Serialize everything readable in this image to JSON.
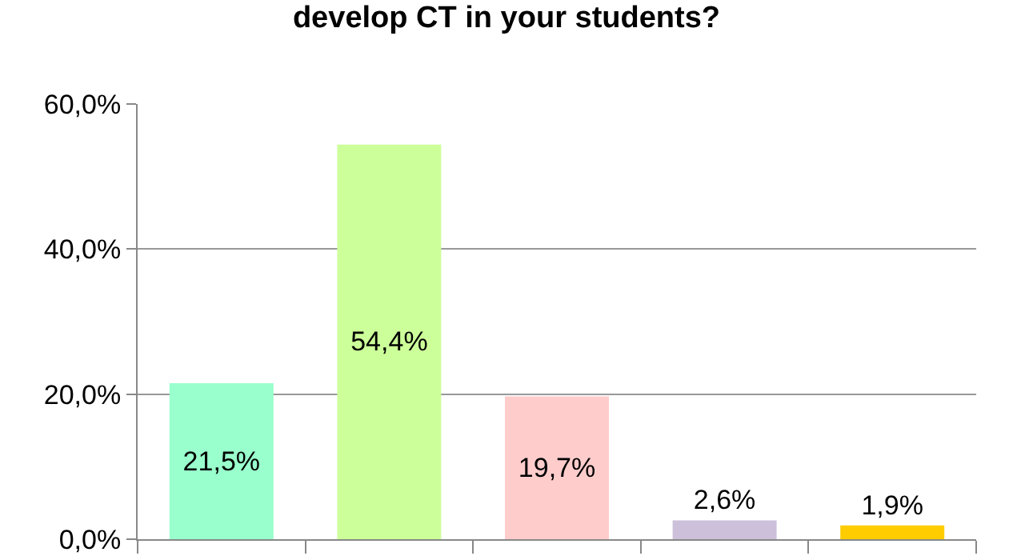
{
  "chart_data": {
    "type": "bar",
    "title": "develop CT in your students?",
    "categories": [
      null,
      null,
      null,
      null,
      null
    ],
    "values": [
      21.5,
      54.4,
      19.7,
      2.6,
      1.9
    ],
    "colors": [
      "#99ffcc",
      "#ccff99",
      "#ffcccc",
      "#ccc0da",
      "#ffcc00"
    ],
    "value_labels": [
      "21,5%",
      "54,4%",
      "19,7%",
      "2,6%",
      "1,9%"
    ],
    "ylim": [
      0,
      60
    ],
    "yticks": [
      {
        "value": 0,
        "label": "0,0%"
      },
      {
        "value": 20,
        "label": "20,0%"
      },
      {
        "value": 40,
        "label": "40,0%"
      },
      {
        "value": 60,
        "label": "60,0%"
      }
    ],
    "grid": "y",
    "tick_labels": "y"
  }
}
